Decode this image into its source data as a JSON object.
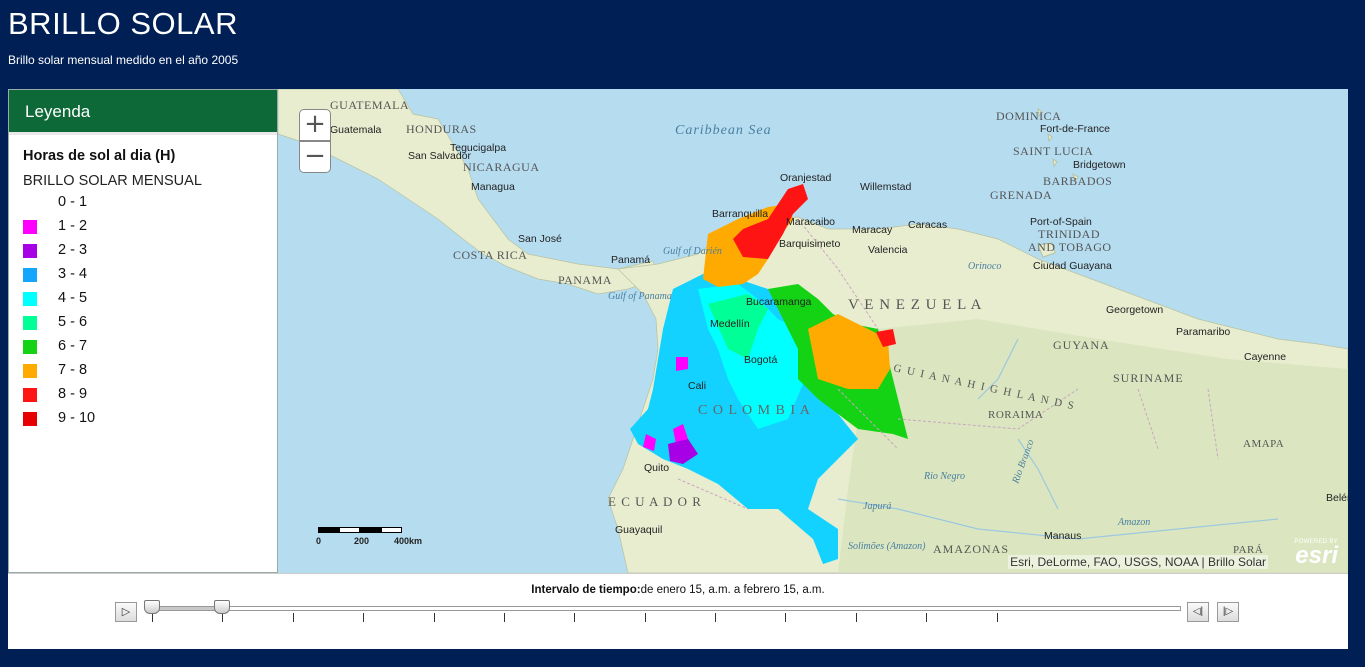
{
  "header": {
    "title": "BRILLO SOLAR",
    "subtitle": "Brillo solar mensual medido en el año 2005"
  },
  "legend": {
    "header": "Leyenda",
    "field_title": "Horas de sol al dia (H)",
    "layer_name": "BRILLO SOLAR MENSUAL",
    "classes": [
      {
        "label": "0 - 1",
        "color": "#ffffff"
      },
      {
        "label": "1 - 2",
        "color": "#ff00ff"
      },
      {
        "label": "2 - 3",
        "color": "#a800e6"
      },
      {
        "label": "3 - 4",
        "color": "#14a5ff"
      },
      {
        "label": "4 - 5",
        "color": "#00ffff"
      },
      {
        "label": "5 - 6",
        "color": "#00ff96"
      },
      {
        "label": "6 - 7",
        "color": "#14d214"
      },
      {
        "label": "7 - 8",
        "color": "#ffaa00"
      },
      {
        "label": "8 - 9",
        "color": "#ff1414"
      },
      {
        "label": "9 - 10",
        "color": "#e60000"
      }
    ]
  },
  "map": {
    "zoom_in": "+",
    "zoom_out": "−",
    "attribution": "Esri, DeLorme, FAO, USGS, NOAA | Brillo Solar",
    "esri_powered": "POWERED BY",
    "esri_word": "esri",
    "scale_labels": [
      "0",
      "200",
      "400km"
    ],
    "country_labels": [
      "GUATEMALA",
      "HONDURAS",
      "NICARAGUA",
      "COSTA RICA",
      "PANAMA",
      "V E N E Z U E L A",
      "C O L O M B I A",
      "E C U A D O R",
      "GUYANA",
      "SURINAME",
      "AMAZONAS",
      "DOMINICA",
      "SAINT LUCIA",
      "BARBADOS",
      "GRENADA",
      "TRINIDAD",
      "AND TOBAGO",
      "G U I A N A   H I G H L A N D S",
      "RORAIMA",
      "AMAPA",
      "PARÁ"
    ],
    "city_labels": [
      "Guatemala",
      "San Salvador",
      "Tegucigalpa",
      "Managua",
      "San José",
      "Panamá",
      "Barranquilla",
      "Maracaibo",
      "Caracas",
      "Maracay",
      "Valencia",
      "Barquisimeto",
      "Oranjestad",
      "Willemstad",
      "Bucaramanga",
      "Medellín",
      "Bogotá",
      "Cali",
      "Quito",
      "Guayaquil",
      "Port-of-Spain",
      "Ciudad Guayana",
      "Georgetown",
      "Paramaribo",
      "Cayenne",
      "Fort-de-France",
      "Bridgetown",
      "Manaus",
      "Belém"
    ],
    "water_labels": [
      "Caribbean Sea",
      "Gulf of Darién",
      "Gulf of Panama",
      "Orinoco",
      "Rio Negro",
      "Japurá",
      "Solimões (Amazon)",
      "Amazon",
      "Rio Branco"
    ]
  },
  "time_slider": {
    "label_bold": "Intervalo de tiempo:",
    "label_text": "de enero 15, a.m. a febrero 15, a.m.",
    "play": "▷",
    "prev": "◁|",
    "next": "|▷",
    "tick_count": 13,
    "thumb_start_index": 0,
    "thumb_end_index": 1
  },
  "colors": {
    "header_bg": "#002055",
    "legend_header_bg": "#0d6a38",
    "land": "#e8edcf",
    "water": "#b6dcf0"
  }
}
